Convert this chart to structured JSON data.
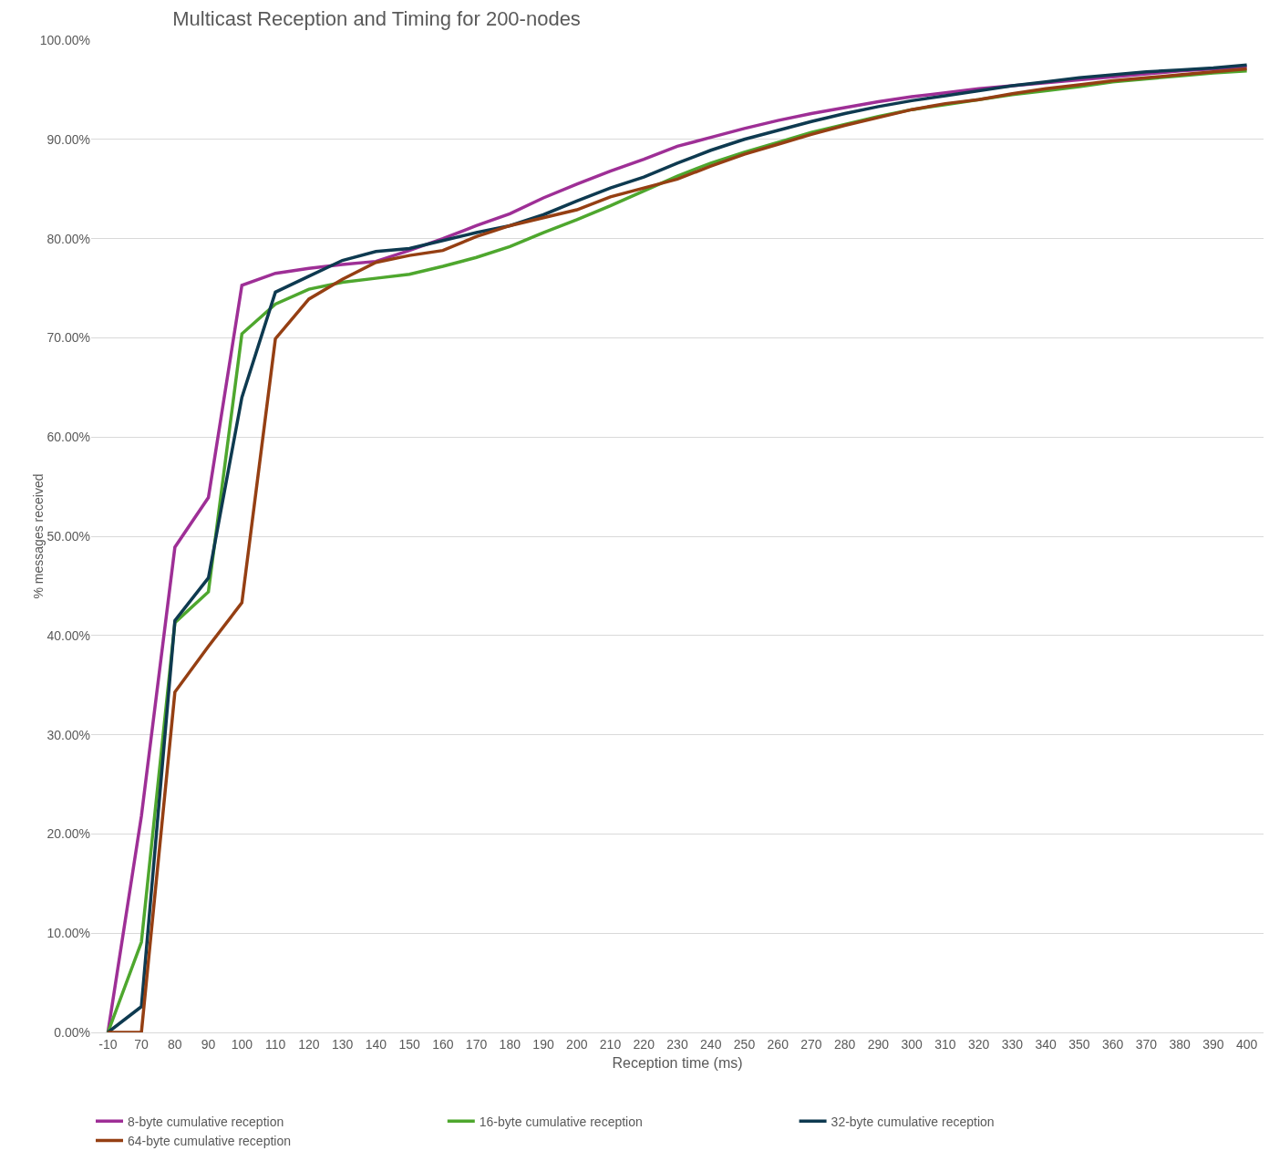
{
  "chart_data": {
    "type": "line",
    "title": "Multicast Reception and Timing for 200-nodes",
    "xlabel": "Reception time (ms)",
    "ylabel": "% messages received",
    "categories": [
      "-10",
      "70",
      "80",
      "90",
      "100",
      "110",
      "120",
      "130",
      "140",
      "150",
      "160",
      "170",
      "180",
      "190",
      "200",
      "210",
      "220",
      "230",
      "240",
      "250",
      "260",
      "270",
      "280",
      "290",
      "300",
      "310",
      "320",
      "330",
      "340",
      "350",
      "360",
      "370",
      "380",
      "390",
      "400"
    ],
    "series": [
      {
        "name": "8-byte cumulative reception",
        "color": "#9e2f96",
        "values": [
          0,
          21.8,
          48.9,
          53.9,
          75.3,
          76.5,
          77.0,
          77.4,
          77.7,
          78.8,
          80.0,
          81.3,
          82.5,
          84.1,
          85.5,
          86.8,
          88.0,
          89.3,
          90.2,
          91.1,
          91.9,
          92.6,
          93.2,
          93.8,
          94.3,
          94.7,
          95.1,
          95.4,
          95.7,
          96.0,
          96.3,
          96.6,
          96.9,
          97.1,
          97.3
        ]
      },
      {
        "name": "16-byte cumulative reception",
        "color": "#4ea72e",
        "values": [
          0,
          9.1,
          41.3,
          44.4,
          70.4,
          73.4,
          74.9,
          75.6,
          76.0,
          76.4,
          77.2,
          78.1,
          79.2,
          80.6,
          81.9,
          83.3,
          84.8,
          86.3,
          87.6,
          88.7,
          89.7,
          90.7,
          91.5,
          92.3,
          93.0,
          93.5,
          94.0,
          94.5,
          94.9,
          95.3,
          95.8,
          96.1,
          96.4,
          96.7,
          96.9
        ]
      },
      {
        "name": "32-byte cumulative reception",
        "color": "#0e3a50",
        "values": [
          0,
          2.6,
          41.5,
          45.8,
          64.0,
          74.6,
          76.2,
          77.8,
          78.7,
          79.0,
          79.8,
          80.6,
          81.3,
          82.4,
          83.8,
          85.1,
          86.2,
          87.6,
          88.9,
          90.0,
          90.9,
          91.8,
          92.6,
          93.3,
          93.9,
          94.4,
          94.9,
          95.4,
          95.8,
          96.2,
          96.5,
          96.8,
          97.0,
          97.2,
          97.5
        ]
      },
      {
        "name": "64-byte cumulative reception",
        "color": "#953f13",
        "values": [
          0,
          0,
          34.3,
          38.9,
          43.3,
          69.9,
          73.9,
          75.9,
          77.6,
          78.3,
          78.8,
          80.2,
          81.3,
          82.1,
          82.9,
          84.2,
          85.1,
          86.0,
          87.3,
          88.5,
          89.5,
          90.5,
          91.4,
          92.2,
          93.0,
          93.6,
          94.0,
          94.6,
          95.1,
          95.5,
          95.9,
          96.2,
          96.5,
          96.8,
          97.1
        ]
      }
    ],
    "ylim": [
      0,
      100
    ],
    "yticks": [
      {
        "value": 0,
        "label": "0.00%"
      },
      {
        "value": 10,
        "label": "10.00%"
      },
      {
        "value": 20,
        "label": "20.00%"
      },
      {
        "value": 30,
        "label": "30.00%"
      },
      {
        "value": 40,
        "label": "40.00%"
      },
      {
        "value": 50,
        "label": "50.00%"
      },
      {
        "value": 60,
        "label": "60.00%"
      },
      {
        "value": 70,
        "label": "70.00%"
      },
      {
        "value": 80,
        "label": "80.00%"
      },
      {
        "value": 90,
        "label": "90.00%"
      },
      {
        "value": 100,
        "label": "100.00%"
      }
    ],
    "grid": "y",
    "legend": "bottom",
    "marker": "none",
    "line_style": "solid"
  }
}
